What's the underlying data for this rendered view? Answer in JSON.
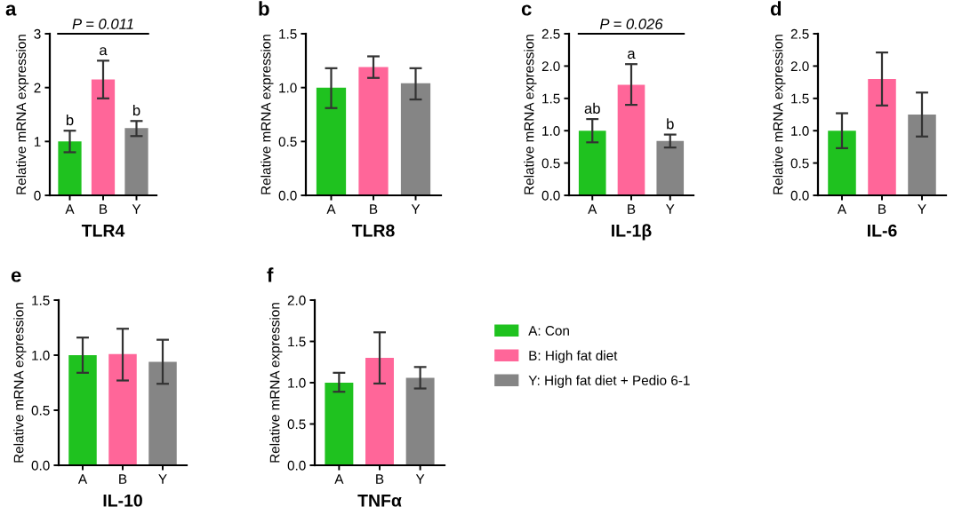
{
  "chart_data": [
    {
      "type": "bar",
      "title": "a",
      "xlabel": "TLR4",
      "ylabel": "Relative mRNA expression",
      "categories": [
        "A",
        "B",
        "Y"
      ],
      "ylim": [
        0,
        3
      ],
      "yticks": [
        0,
        1,
        2,
        3
      ],
      "values": [
        1.0,
        2.15,
        1.25
      ],
      "colors": [
        "#1fc21f",
        "#ff6699",
        "#858585"
      ],
      "errors": [
        [
          0.8,
          1.2
        ],
        [
          1.8,
          2.5
        ],
        [
          1.1,
          1.38
        ]
      ],
      "annotations": [
        {
          "text": "b",
          "x": "A",
          "y": 1.2
        },
        {
          "text": "a",
          "x": "B",
          "y": 2.5
        },
        {
          "text": "b",
          "x": "Y",
          "y": 1.38
        },
        "P = 0.011"
      ]
    },
    {
      "type": "bar",
      "title": "b",
      "xlabel": "TLR8",
      "ylabel": "Relative mRNA expression",
      "categories": [
        "A",
        "B",
        "Y"
      ],
      "ylim": [
        0,
        1.5
      ],
      "yticks": [
        {
          "value": 0,
          "label": "0.0"
        },
        0.5,
        {
          "value": 1,
          "label": "1.0"
        },
        1.5
      ],
      "values": [
        1.0,
        1.19,
        1.04
      ],
      "colors": [
        "#1fc21f",
        "#ff6699",
        "#858585"
      ],
      "errors": [
        [
          0.81,
          1.18
        ],
        [
          1.09,
          1.29
        ],
        [
          0.89,
          1.18
        ]
      ]
    },
    {
      "type": "bar",
      "title": "c",
      "xlabel": "IL-1β",
      "ylabel": "Relative mRNA expression",
      "categories": [
        "A",
        "B",
        "Y"
      ],
      "ylim": [
        0,
        2.5
      ],
      "yticks": [
        {
          "value": 0,
          "label": "0.0"
        },
        0.5,
        {
          "value": 1,
          "label": "1.0"
        },
        1.5,
        {
          "value": 2,
          "label": "2.0"
        },
        2.5
      ],
      "values": [
        1.0,
        1.71,
        0.84
      ],
      "colors": [
        "#1fc21f",
        "#ff6699",
        "#858585"
      ],
      "errors": [
        [
          0.82,
          1.18
        ],
        [
          1.4,
          2.03
        ],
        [
          0.74,
          0.94
        ]
      ],
      "annotations": [
        {
          "text": "ab",
          "x": "A",
          "y": 1.18
        },
        {
          "text": "a",
          "x": "B",
          "y": 2.03
        },
        {
          "text": "b",
          "x": "Y",
          "y": 0.94
        },
        "P = 0.026"
      ]
    },
    {
      "type": "bar",
      "title": "d",
      "xlabel": "IL-6",
      "ylabel": "Relative mRNA expression",
      "categories": [
        "A",
        "B",
        "Y"
      ],
      "ylim": [
        0,
        2.5
      ],
      "yticks": [
        {
          "value": 0,
          "label": "0.0"
        },
        0.5,
        {
          "value": 1,
          "label": "1.0"
        },
        1.5,
        {
          "value": 2,
          "label": "2.0"
        },
        2.5
      ],
      "values": [
        1.0,
        1.8,
        1.25
      ],
      "colors": [
        "#1fc21f",
        "#ff6699",
        "#858585"
      ],
      "errors": [
        [
          0.73,
          1.27
        ],
        [
          1.39,
          2.21
        ],
        [
          0.91,
          1.59
        ]
      ]
    },
    {
      "type": "bar",
      "title": "e",
      "xlabel": "IL-10",
      "ylabel": "Relative mRNA expression",
      "categories": [
        "A",
        "B",
        "Y"
      ],
      "ylim": [
        0,
        1.5
      ],
      "yticks": [
        {
          "value": 0,
          "label": "0.0"
        },
        0.5,
        {
          "value": 1,
          "label": "1.0"
        },
        1.5
      ],
      "values": [
        1.0,
        1.01,
        0.94
      ],
      "colors": [
        "#1fc21f",
        "#ff6699",
        "#858585"
      ],
      "errors": [
        [
          0.84,
          1.16
        ],
        [
          0.77,
          1.24
        ],
        [
          0.74,
          1.14
        ]
      ]
    },
    {
      "type": "bar",
      "title": "f",
      "xlabel": "TNFα",
      "ylabel": "Relative mRNA expression",
      "categories": [
        "A",
        "B",
        "Y"
      ],
      "ylim": [
        0,
        2
      ],
      "yticks": [
        {
          "value": 0,
          "label": "0.0"
        },
        0.5,
        {
          "value": 1,
          "label": "1.0"
        },
        1.5,
        {
          "value": 2,
          "label": "2.0"
        }
      ],
      "series": [
        {
          "name": "A: Con",
          "color": "#1fc21f",
          "values": [
            1.0,
            null,
            null
          ],
          "errors": [
            [
              0.89,
              1.12
            ],
            null,
            null
          ]
        },
        {
          "name": "B: High fat diet",
          "color": "#ff6699",
          "values": [
            null,
            1.3,
            null
          ],
          "errors": [
            null,
            [
              0.99,
              1.61
            ],
            null
          ]
        },
        {
          "name": "Y: High fat diet + Pedio 6-1",
          "color": "#858585",
          "values": [
            null,
            null,
            1.06
          ],
          "errors": [
            null,
            null,
            [
              0.93,
              1.19
            ]
          ]
        }
      ],
      "legend": "right"
    }
  ]
}
